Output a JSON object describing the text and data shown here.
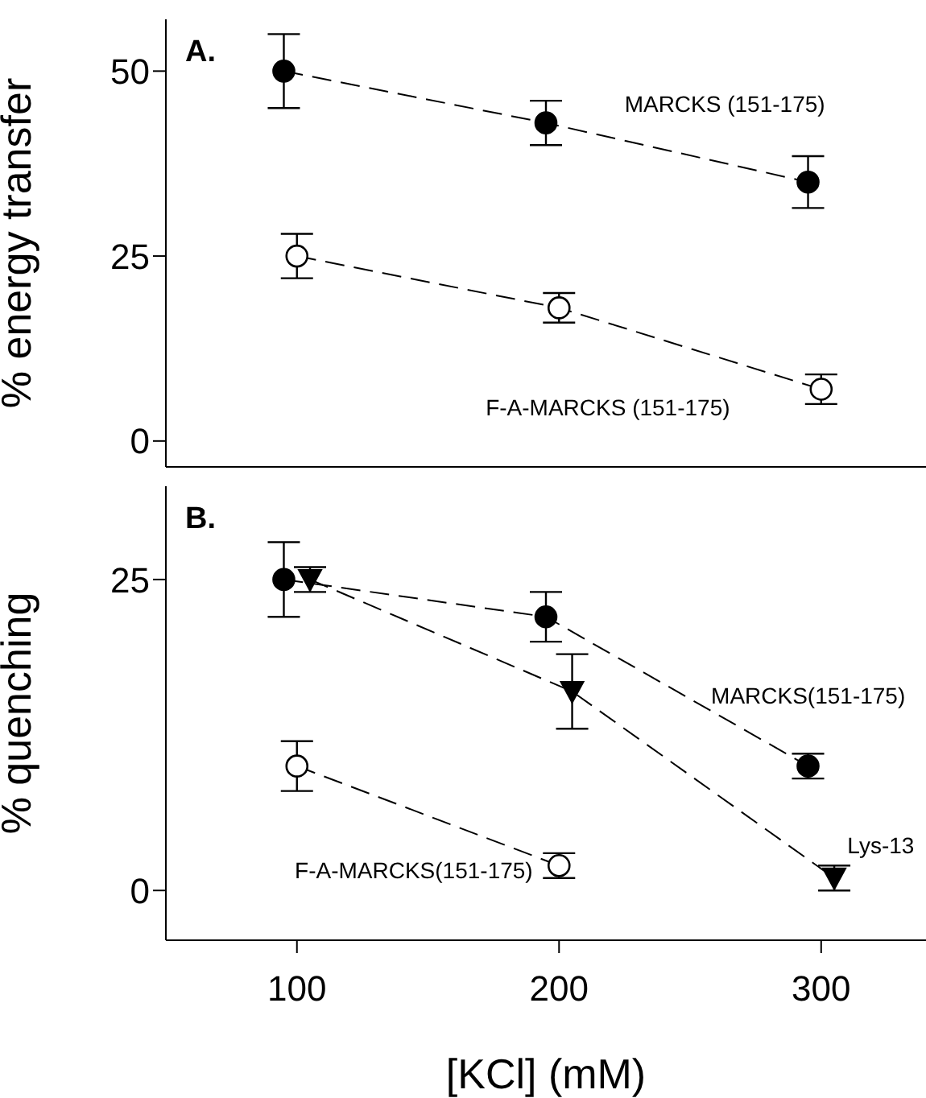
{
  "chart_data": [
    {
      "type": "line",
      "ylabel": "% energy transfer",
      "annotations": [
        "A."
      ],
      "xlim": [
        50,
        340
      ],
      "xticks": [
        100,
        200,
        300
      ],
      "ylim": [
        -3.5,
        57
      ],
      "yticks": [
        0,
        25,
        50
      ],
      "tick_labels": "y",
      "line_style": "dashed",
      "marker": "circle",
      "series": [
        {
          "name": "MARCKS (151-175)",
          "color": "#000000",
          "x": [
            95,
            195,
            295
          ],
          "values": [
            50,
            43,
            35
          ],
          "errors": [
            5,
            3,
            3.5
          ]
        },
        {
          "name": "F-A-MARCKS (151-175)",
          "color": "#ffffff",
          "x": [
            100,
            200,
            300
          ],
          "values": [
            25,
            18,
            7
          ],
          "errors": [
            3,
            2,
            2
          ]
        }
      ]
    },
    {
      "type": "line",
      "ylabel": "% quenching",
      "xlabel": "[KCl]   (mM)",
      "annotations": [
        "B."
      ],
      "xlim": [
        50,
        340
      ],
      "xticks": [
        100,
        200,
        300
      ],
      "ylim": [
        -4,
        32.5
      ],
      "yticks": [
        0,
        25
      ],
      "line_style": "dashed",
      "marker": "circle",
      "series": [
        {
          "name": "MARCKS(151-175)",
          "color": "#000000",
          "x": [
            95,
            195,
            295
          ],
          "values": [
            25,
            22,
            10
          ],
          "errors": [
            3,
            2,
            1
          ]
        },
        {
          "name": "Lys-13",
          "color": "#000000",
          "marker": "triangle",
          "x": [
            105,
            205,
            305
          ],
          "values": [
            25,
            16,
            1
          ],
          "errors": [
            1,
            3,
            1
          ]
        },
        {
          "name": "F-A-MARCKS(151-175)",
          "color": "#ffffff",
          "x": [
            100,
            200
          ],
          "values": [
            10,
            2
          ],
          "errors": [
            2,
            1
          ]
        }
      ]
    }
  ]
}
